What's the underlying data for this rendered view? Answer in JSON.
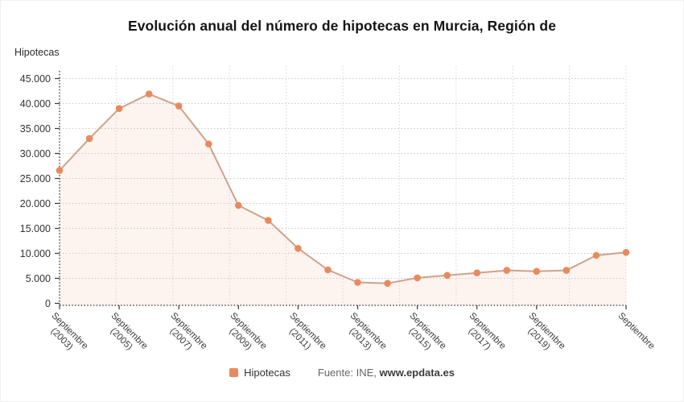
{
  "title": "Evolución anual del número de hipotecas en Murcia, Región de",
  "ylabel_title": "Hipotecas",
  "legend": {
    "label": "Hipotecas",
    "source_prefix": "Fuente: INE, ",
    "source_link": "www.epdata.es"
  },
  "colors": {
    "marker": "#e88a5e",
    "line": "#cda28c",
    "area": "rgba(233,142,100,0.10)",
    "h_grid": "#c9c9c9",
    "v_grid": "#e2d3cc",
    "axis": "#3a3a3a",
    "tick_text": "#333333"
  },
  "chart_data": {
    "type": "line",
    "title": "Evolución anual del número de hipotecas en Murcia, Región de",
    "ylabel": "Hipotecas",
    "legend_position": "bottom",
    "grid": true,
    "ylim": [
      0,
      45000
    ],
    "x": [
      "2003",
      "2004",
      "2005",
      "2006",
      "2007",
      "2008",
      "2009",
      "2010",
      "2011",
      "2012",
      "2013",
      "2014",
      "2015",
      "2016",
      "2017",
      "2018",
      "2019",
      "2020",
      "2021",
      "2022"
    ],
    "series": [
      {
        "name": "Hipotecas",
        "values": [
          26600,
          33000,
          39000,
          41900,
          39500,
          31900,
          19600,
          16600,
          11000,
          6700,
          4200,
          4000,
          5100,
          5600,
          6100,
          6600,
          6400,
          6600,
          9600,
          10200
        ]
      }
    ],
    "y_ticks": [
      0,
      5000,
      10000,
      15000,
      20000,
      25000,
      30000,
      35000,
      40000,
      45000
    ],
    "y_tick_labels": [
      "0",
      "5.000",
      "10.000",
      "15.000",
      "20.000",
      "25.000",
      "30.000",
      "35.000",
      "40.000",
      "45.000"
    ],
    "x_tick_labels": [
      {
        "index": 0,
        "line1": "Septiembre",
        "line2": "(2003)"
      },
      {
        "index": 2,
        "line1": "Septiembre",
        "line2": "(2005)"
      },
      {
        "index": 4,
        "line1": "Septiembre",
        "line2": "(2007)"
      },
      {
        "index": 6,
        "line1": "Septiembre",
        "line2": "(2009)"
      },
      {
        "index": 8,
        "line1": "Septiembre",
        "line2": "(2011)"
      },
      {
        "index": 10,
        "line1": "Septiembre",
        "line2": "(2013)"
      },
      {
        "index": 12,
        "line1": "Septiembre",
        "line2": "(2015)"
      },
      {
        "index": 14,
        "line1": "Septiembre",
        "line2": "(2017)"
      },
      {
        "index": 16,
        "line1": "Septiembre",
        "line2": "(2019)"
      },
      {
        "index": 19,
        "line1": "Septiembre",
        "line2": ""
      }
    ],
    "source": "Fuente: INE, www.epdata.es"
  }
}
